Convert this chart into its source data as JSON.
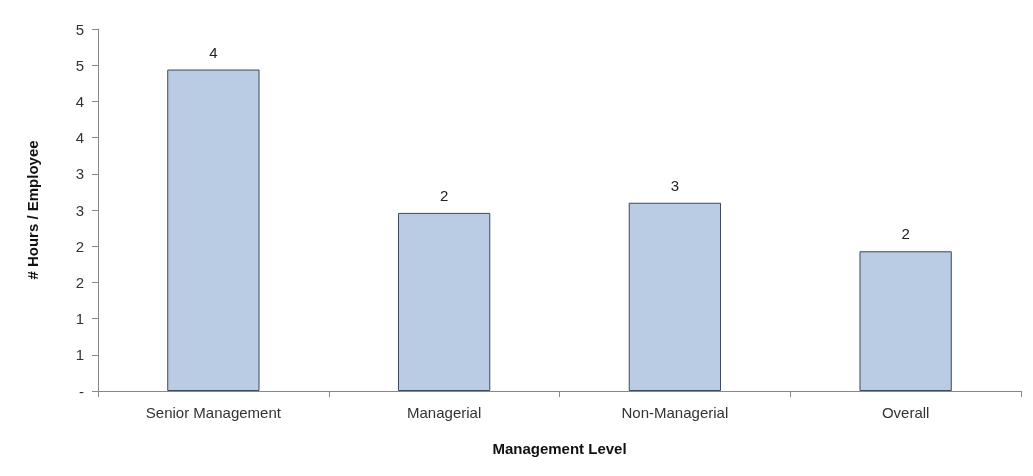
{
  "chart_data": {
    "type": "bar",
    "xlabel": "Management Level",
    "ylabel": "# Hours / Employee",
    "categories": [
      "Senior Management",
      "Managerial",
      "Non-Managerial",
      "Overall"
    ],
    "values": [
      4.44,
      2.46,
      2.6,
      1.93
    ],
    "value_labels": [
      "4",
      "2",
      "3",
      "2"
    ],
    "color": "#b9cce4",
    "ylim": [
      0,
      5
    ],
    "yticks": [
      {
        "value": 0,
        "label": "-"
      },
      {
        "value": 0.5,
        "label": "1"
      },
      1,
      {
        "value": 1.5,
        "label": "2"
      },
      2,
      {
        "value": 2.5,
        "label": "3"
      },
      3,
      {
        "value": 3.5,
        "label": "4"
      },
      4,
      {
        "value": 4.5,
        "label": "5"
      },
      5
    ],
    "grid": false
  }
}
